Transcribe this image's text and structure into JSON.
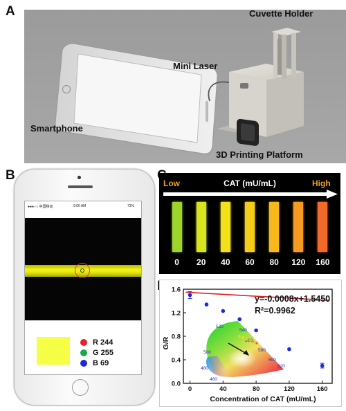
{
  "panels": {
    "a": "A",
    "b": "B",
    "c": "C",
    "d": "D"
  },
  "panel_a": {
    "cuvette_holder": "Cuvette Holder",
    "mini_laser": "Mini Laser",
    "smartphone": "Smartphone",
    "platform": "3D Printing Platform"
  },
  "panel_b": {
    "status_carrier": "●●●○○ 中国移动",
    "status_time": "9:00 AM",
    "status_battery": "73%",
    "rgb": [
      {
        "label": "R 244",
        "color": "#e8202a"
      },
      {
        "label": "G 255",
        "color": "#1aa84f"
      },
      {
        "label": "B 69",
        "color": "#1c2ad8"
      }
    ],
    "swatch_color": "#f4ff45"
  },
  "panel_c": {
    "low": "Low",
    "title": "CAT (mU/mL)",
    "high": "High",
    "strips": [
      {
        "value": "0",
        "color": "#9fd42a"
      },
      {
        "value": "20",
        "color": "#d8e51e"
      },
      {
        "value": "40",
        "color": "#f2e118"
      },
      {
        "value": "60",
        "color": "#f6cc1a"
      },
      {
        "value": "80",
        "color": "#f6b81c"
      },
      {
        "value": "120",
        "color": "#f79a22"
      },
      {
        "value": "160",
        "color": "#f26a2a"
      }
    ]
  },
  "chart_data": {
    "type": "scatter",
    "x": [
      0,
      20,
      40,
      60,
      80,
      120,
      160
    ],
    "y": [
      1.5,
      1.34,
      1.23,
      1.09,
      0.9,
      0.58,
      0.3
    ],
    "yerr": [
      0.06,
      0.01,
      0.01,
      0.01,
      0.01,
      0.01,
      0.04
    ],
    "fit": {
      "slope": -0.0008,
      "intercept": 1.545
    },
    "equation": "y=-0.0008x+1.5450",
    "r2": "R²=0.9962",
    "xlabel": "Concentration of CAT (mU/mL)",
    "ylabel": "G/R",
    "xlim": [
      -8,
      172
    ],
    "ylim": [
      0.0,
      1.6
    ],
    "xticks": [
      0,
      40,
      80,
      120,
      160
    ],
    "yticks": [
      0.0,
      0.4,
      0.8,
      1.2,
      1.6
    ],
    "cie_labels": [
      "520",
      "540",
      "560",
      "580",
      "600",
      "620",
      "500",
      "480",
      "460"
    ]
  }
}
